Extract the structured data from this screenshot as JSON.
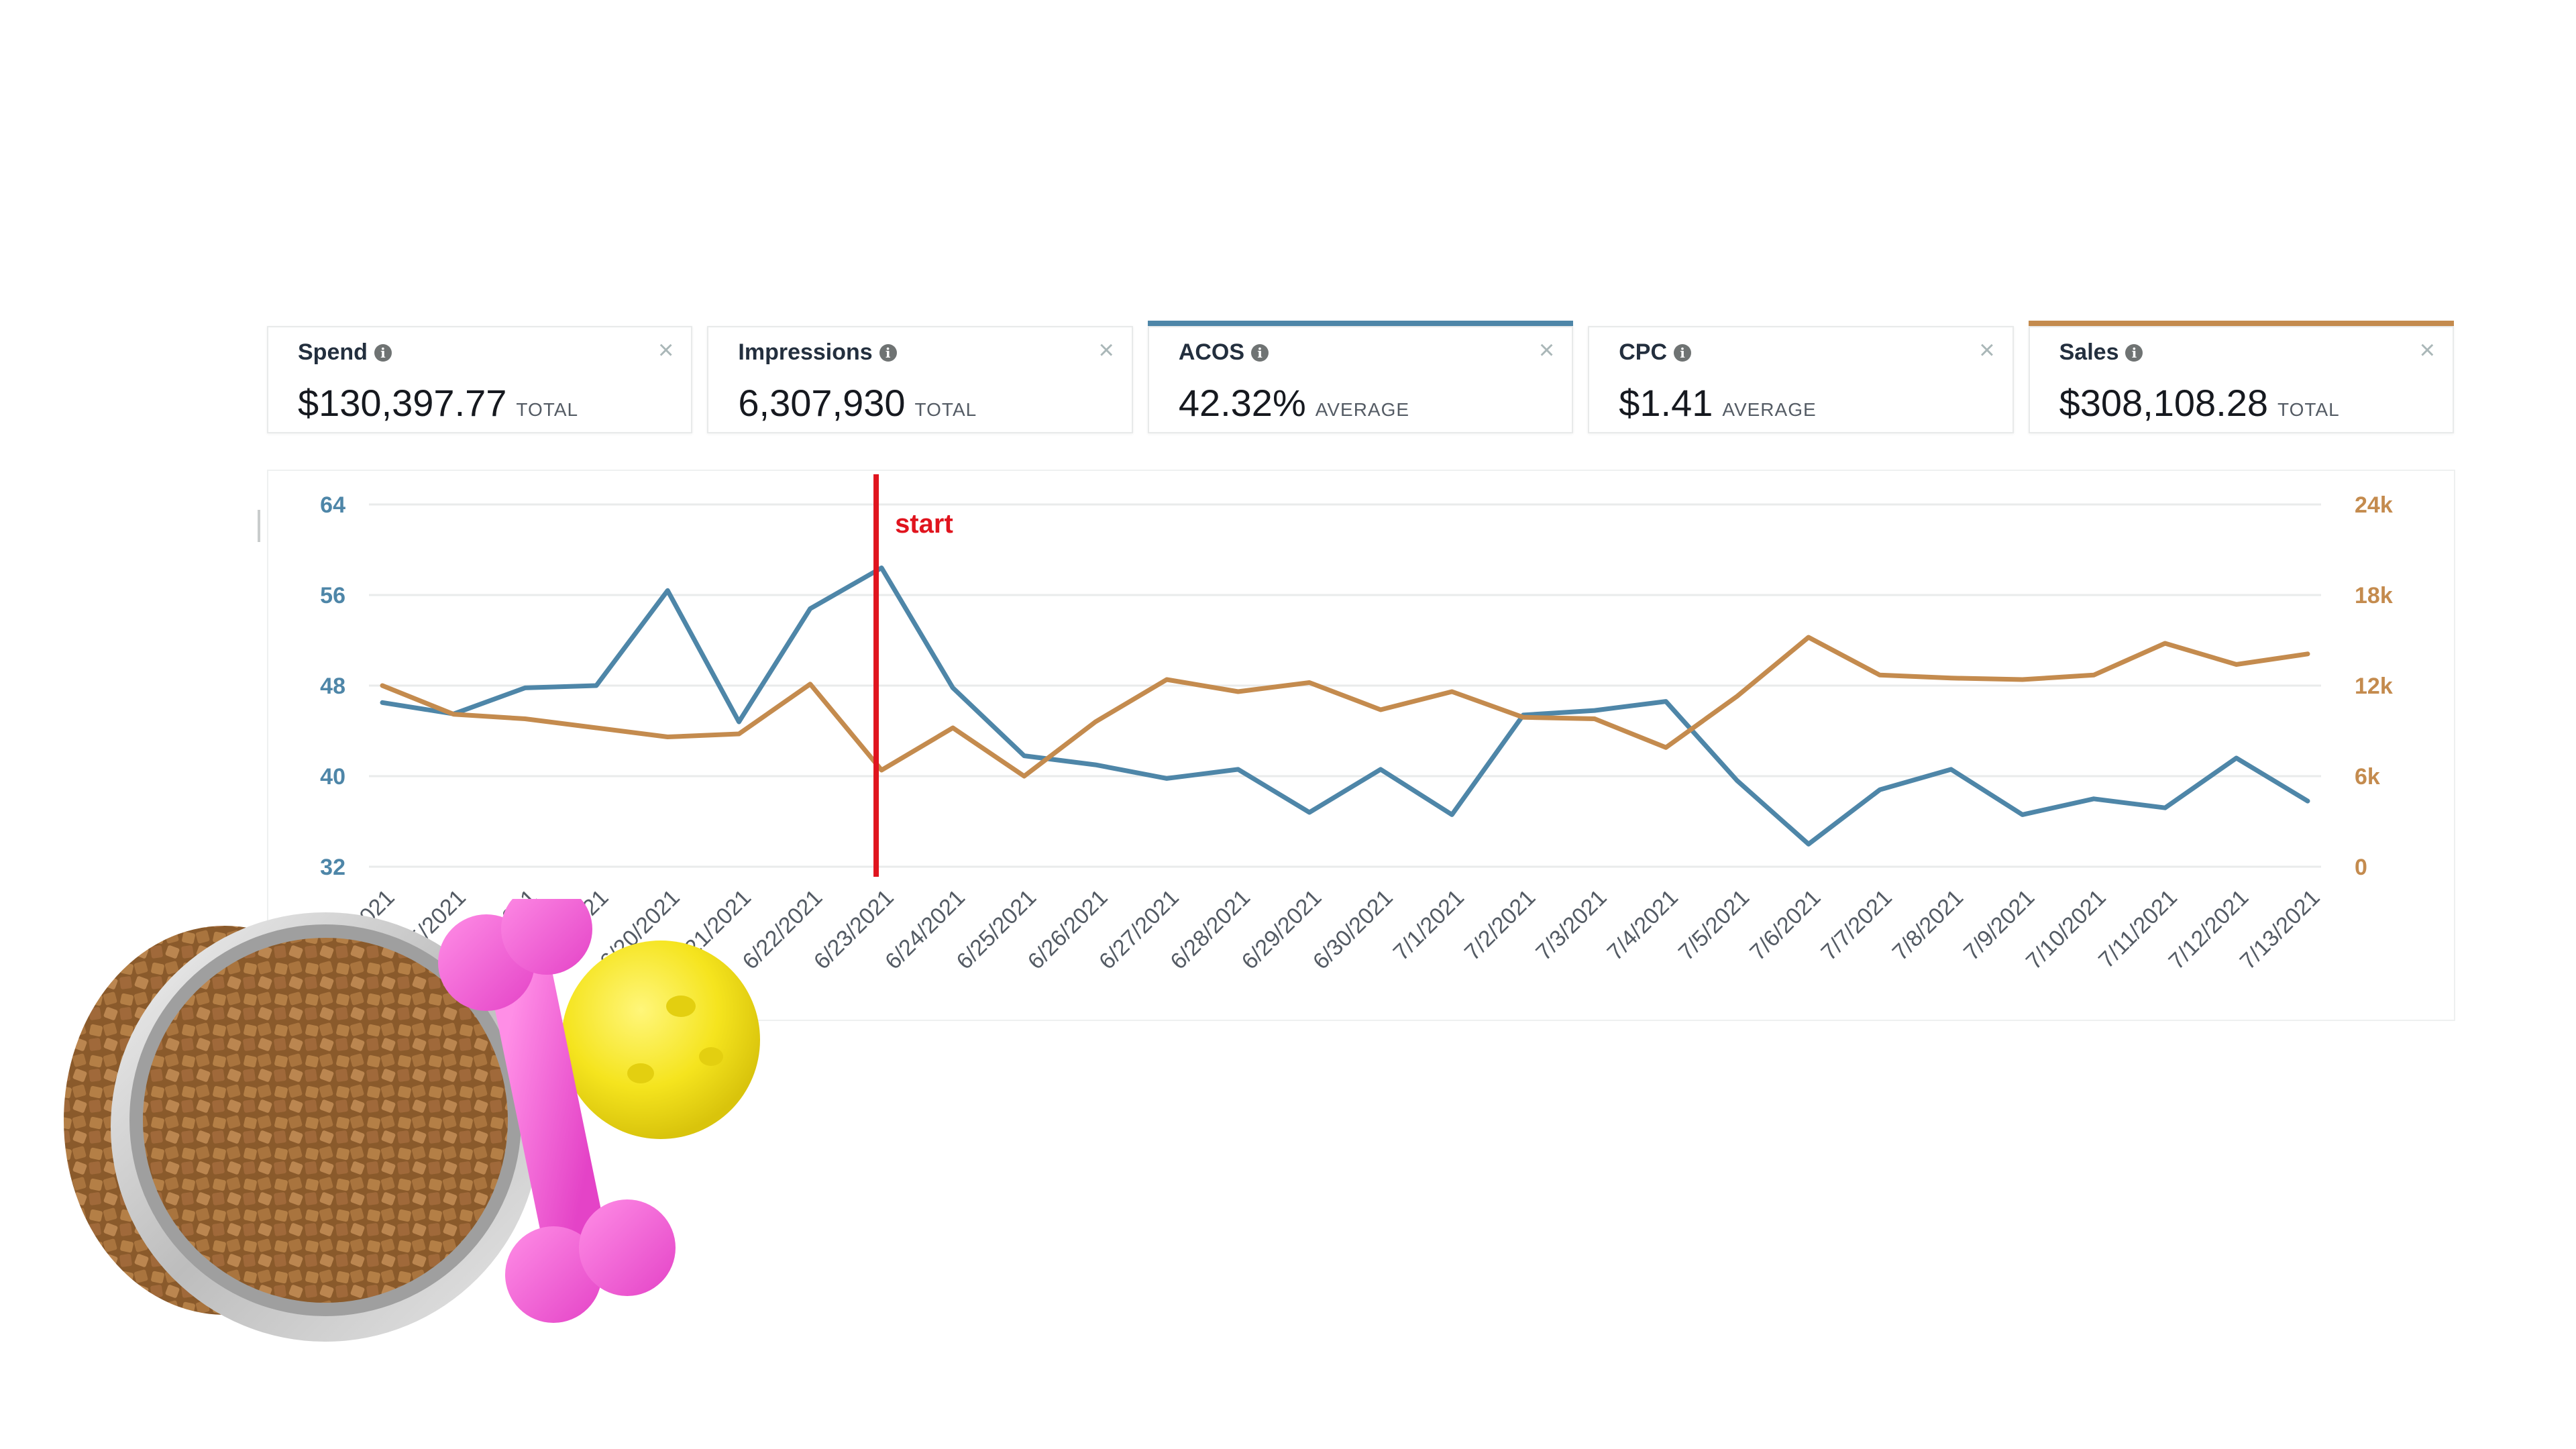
{
  "metrics": [
    {
      "name": "Spend",
      "value": "$130,397.77",
      "aggregation": "TOTAL",
      "accent": ""
    },
    {
      "name": "Impressions",
      "value": "6,307,930",
      "aggregation": "TOTAL",
      "accent": ""
    },
    {
      "name": "ACOS",
      "value": "42.32%",
      "aggregation": "AVERAGE",
      "accent": "#4e86a8"
    },
    {
      "name": "CPC",
      "value": "$1.41",
      "aggregation": "AVERAGE",
      "accent": ""
    },
    {
      "name": "Sales",
      "value": "$308,108.28",
      "aggregation": "TOTAL",
      "accent": "#c48b4e"
    }
  ],
  "icons": {
    "info": "info-icon",
    "close": "close-icon",
    "close_glyph": "×",
    "info_glyph": "i"
  },
  "chart_data": {
    "type": "line",
    "categories": [
      "6/14/2021",
      "6/15/2021",
      "6/16/2021",
      "6/19/2021",
      "6/20/2021",
      "6/21/2021",
      "6/22/2021",
      "6/23/2021",
      "6/24/2021",
      "6/25/2021",
      "6/26/2021",
      "6/27/2021",
      "6/28/2021",
      "6/29/2021",
      "6/30/2021",
      "7/1/2021",
      "7/2/2021",
      "7/3/2021",
      "7/4/2021",
      "7/5/2021",
      "7/6/2021",
      "7/7/2021",
      "7/8/2021",
      "7/9/2021",
      "7/10/2021",
      "7/11/2021",
      "7/12/2021",
      "7/13/2021"
    ],
    "series": [
      {
        "name": "ACOS",
        "axis": "left",
        "color": "#4e86a8",
        "values": [
          46.5,
          45.5,
          47.8,
          48,
          56.4,
          44.8,
          54.8,
          58.4,
          47.8,
          41.8,
          41,
          39.8,
          40.6,
          36.8,
          40.6,
          36.6,
          45.4,
          45.8,
          46.6,
          39.6,
          34,
          38.8,
          40.6,
          36.6,
          38,
          37.2,
          41.6,
          37.8
        ]
      },
      {
        "name": "Sales",
        "axis": "right",
        "color": "#c48b4e",
        "values": [
          12000,
          10100,
          9800,
          9200,
          8600,
          8800,
          12100,
          6400,
          9200,
          6000,
          9600,
          12400,
          11600,
          12200,
          10400,
          11600,
          9900,
          9800,
          7900,
          11300,
          15200,
          12700,
          12500,
          12400,
          12700,
          14800,
          13400,
          14100
        ]
      }
    ],
    "left_axis": {
      "ticks": [
        "64",
        "56",
        "48",
        "40",
        "32"
      ],
      "min": 32,
      "max": 64,
      "color": "#4e86a8"
    },
    "right_axis": {
      "ticks": [
        "24k",
        "18k",
        "12k",
        "6k",
        "0"
      ],
      "min": 0,
      "max": 24000,
      "color": "#c48b4e"
    },
    "annotation": {
      "label": "start",
      "category": "6/23/2021",
      "color": "#e0141e"
    },
    "grid": true
  }
}
